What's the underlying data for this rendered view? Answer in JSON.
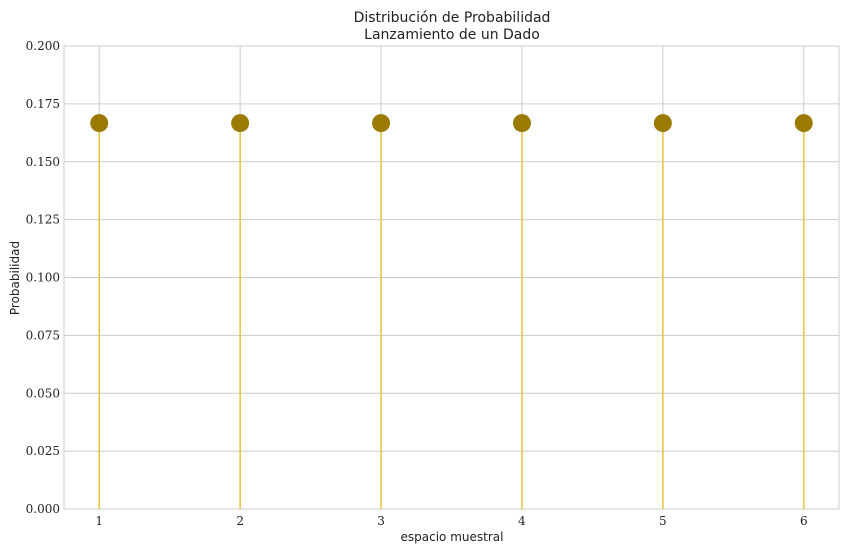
{
  "chart_data": {
    "type": "stem",
    "title": "Distribución de Probabilidad",
    "subtitle": "Lanzamiento de un Dado",
    "xlabel": "espacio muestral",
    "ylabel": "Probabilidad",
    "x": [
      1,
      2,
      3,
      4,
      5,
      6
    ],
    "y": [
      0.1667,
      0.1667,
      0.1667,
      0.1667,
      0.1667,
      0.1667
    ],
    "xlim": [
      0.75,
      6.25
    ],
    "ylim": [
      0,
      0.2
    ],
    "yticks": [
      "0.000",
      "0.025",
      "0.050",
      "0.075",
      "0.100",
      "0.125",
      "0.150",
      "0.175",
      "0.200"
    ],
    "xticks": [
      "1",
      "2",
      "3",
      "4",
      "5",
      "6"
    ],
    "grid": true,
    "colors": {
      "stem": "#e8c547",
      "marker": "#9a7a00",
      "grid": "#cccccc",
      "frame": "#cccccc"
    }
  }
}
